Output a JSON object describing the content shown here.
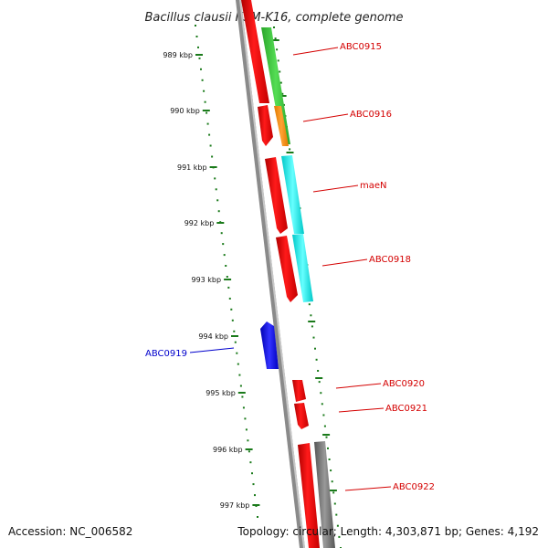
{
  "title": "Bacillus clausii KSM-K16, complete genome",
  "footer": {
    "accession": "Accession: NC_006582",
    "stats": "Topology: circular; Length: 4,303,871 bp; Genes: 4,192"
  },
  "scale_labels": [
    "989 kbp",
    "990 kbp",
    "991 kbp",
    "992 kbp",
    "993 kbp",
    "994 kbp",
    "995 kbp",
    "996 kbp",
    "997 kbp"
  ],
  "gene_labels": [
    {
      "name": "ABC0915",
      "color": "#d40000"
    },
    {
      "name": "ABC0916",
      "color": "#d40000"
    },
    {
      "name": "maeN",
      "color": "#d40000"
    },
    {
      "name": "ABC0918",
      "color": "#d40000"
    },
    {
      "name": "ABC0919",
      "color": "#0000cc"
    },
    {
      "name": "ABC0920",
      "color": "#d40000"
    },
    {
      "name": "ABC0921",
      "color": "#d40000"
    },
    {
      "name": "ABC0922",
      "color": "#d40000"
    }
  ],
  "colors": {
    "backbone": "#808080",
    "forward_gene": "#ff0000",
    "reverse_gene": "#0000ff",
    "track_green": "#33cc33",
    "track_orange": "#ff8c00",
    "track_cyan": "#00e5e5",
    "track_gray": "#777777",
    "tick": "#1a7a1a"
  }
}
